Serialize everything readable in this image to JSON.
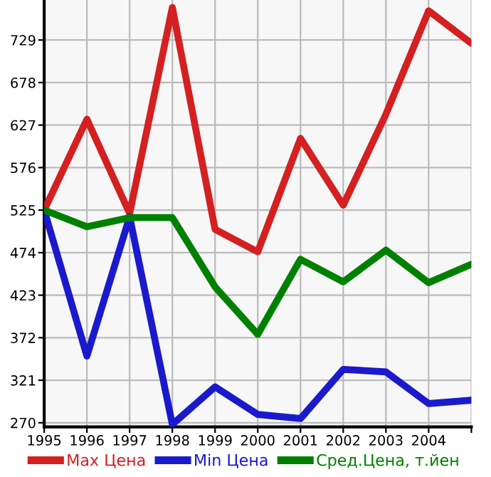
{
  "chart_data": {
    "type": "line",
    "x": [
      1995,
      1996,
      1997,
      1998,
      1999,
      2000,
      2001,
      2002,
      2003,
      2004,
      2005
    ],
    "series": [
      {
        "name": "Max Цена",
        "color": "#d42020",
        "values": [
          525,
          634,
          521,
          768,
          502,
          475,
          611,
          531,
          640,
          764,
          725
        ]
      },
      {
        "name": "Min Цена",
        "color": "#1a1acc",
        "values": [
          525,
          350,
          517,
          268,
          313,
          280,
          275,
          334,
          331,
          293,
          297
        ]
      },
      {
        "name": "Сред.Цена, т.йен",
        "color": "#008000",
        "values": [
          525,
          505,
          516,
          516,
          433,
          376,
          466,
          439,
          477,
          438,
          460
        ]
      }
    ],
    "xlim": [
      1995,
      2005
    ],
    "xticks": [
      1995,
      1996,
      1997,
      1998,
      1999,
      2000,
      2001,
      2002,
      2003,
      2004,
      {
        "value": 2005,
        "label": null
      }
    ],
    "ylim": [
      265,
      777
    ],
    "yticks": [
      270,
      321,
      372,
      423,
      474,
      525,
      576,
      627,
      678,
      729
    ],
    "grid": true,
    "legend": "bottom",
    "marker": "none",
    "line_style": "solid"
  }
}
